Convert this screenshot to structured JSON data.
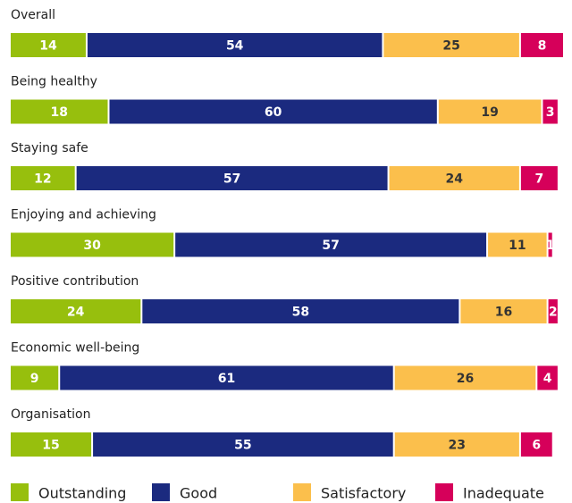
{
  "chart_data": {
    "type": "bar",
    "orientation": "horizontal",
    "stacked": true,
    "categories": [
      "Overall",
      "Being healthy",
      "Staying safe",
      "Enjoying and achieving",
      "Positive contribution",
      "Economic well-being",
      "Organisation"
    ],
    "series": [
      {
        "name": "Outstanding",
        "color": "#97bf0d",
        "values": [
          14,
          18,
          12,
          30,
          24,
          9,
          15
        ]
      },
      {
        "name": "Good",
        "color": "#1b2a7f",
        "values": [
          54,
          60,
          57,
          57,
          58,
          61,
          55
        ]
      },
      {
        "name": "Satisfactory",
        "color": "#fbbf4c",
        "values": [
          25,
          19,
          24,
          11,
          16,
          26,
          23
        ]
      },
      {
        "name": "Inadequate",
        "color": "#d6005a",
        "values": [
          8,
          3,
          7,
          1,
          2,
          4,
          6
        ]
      }
    ]
  }
}
